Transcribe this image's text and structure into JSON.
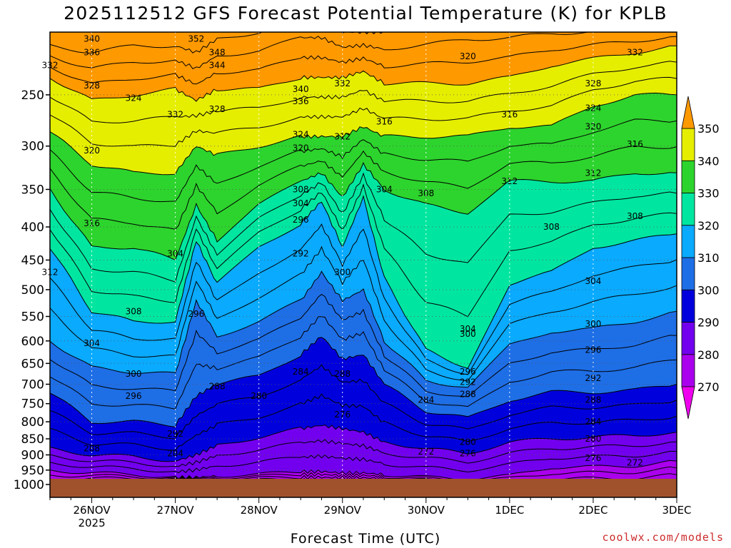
{
  "chart_data": {
    "type": "heatmap",
    "title": "2025112512 GFS Forecast Potential Temperature (K) for KPLB",
    "xlabel": "Forecast Time (UTC)",
    "ylabel": "",
    "credit": "coolwx.com/models",
    "y_axis": {
      "scale": "log-pressure",
      "range": [
        1000,
        200
      ],
      "ticks": [
        250,
        300,
        350,
        400,
        450,
        500,
        550,
        600,
        650,
        700,
        750,
        800,
        850,
        900,
        950,
        1000
      ]
    },
    "x_axis": {
      "range": [
        "2025-11-25 12Z",
        "2025-12-03 00Z"
      ],
      "ticks": [
        {
          "label": "26NOV",
          "sublabel": "2025",
          "time": "2025-11-26 00Z"
        },
        {
          "label": "27NOV",
          "sublabel": "",
          "time": "2025-11-27 00Z"
        },
        {
          "label": "28NOV",
          "sublabel": "",
          "time": "2025-11-28 00Z"
        },
        {
          "label": "29NOV",
          "sublabel": "",
          "time": "2025-11-29 00Z"
        },
        {
          "label": "30NOV",
          "sublabel": "",
          "time": "2025-11-30 00Z"
        },
        {
          "label": "1DEC",
          "sublabel": "",
          "time": "2025-12-01 00Z"
        },
        {
          "label": "2DEC",
          "sublabel": "",
          "time": "2025-12-02 00Z"
        },
        {
          "label": "3DEC",
          "sublabel": "",
          "time": "2025-12-03 00Z"
        }
      ]
    },
    "grid": true,
    "colorbar": {
      "levels": [
        270,
        280,
        290,
        300,
        310,
        320,
        330,
        340,
        350
      ],
      "colors": [
        "#ee00ee",
        "#aa00ee",
        "#7200ee",
        "#0000dd",
        "#1e6ee6",
        "#0aaaff",
        "#00e6a0",
        "#2dd42d",
        "#e6ee00",
        "#ff9900"
      ]
    },
    "ground_color": "#a0522d",
    "profile_times": [
      "11-25 12Z",
      "11-26 00Z",
      "11-26 12Z",
      "11-27 00Z",
      "11-27 06Z",
      "11-27 12Z",
      "11-28 00Z",
      "11-28 12Z",
      "11-28 18Z",
      "11-29 00Z",
      "11-29 06Z",
      "11-29 12Z",
      "11-30 00Z",
      "11-30 12Z",
      "12-01 00Z",
      "12-01 12Z",
      "12-02 00Z",
      "12-02 12Z",
      "12-03 00Z"
    ],
    "isentrope_pressures": [
      [
        1000,
        990,
        985,
        985,
        985,
        985,
        985,
        985,
        985,
        985,
        985,
        985,
        990,
        1000,
        1000,
        1000,
        1000,
        1000,
        990
      ],
      [
        950,
        960,
        965,
        975,
        975,
        970,
        965,
        955,
        955,
        960,
        960,
        965,
        975,
        980,
        970,
        940,
        940,
        935,
        920
      ],
      [
        880,
        900,
        905,
        920,
        900,
        870,
        845,
        820,
        810,
        820,
        830,
        860,
        880,
        895,
        860,
        850,
        845,
        840,
        830
      ],
      [
        720,
        800,
        800,
        810,
        730,
        700,
        680,
        630,
        590,
        640,
        630,
        700,
        770,
        790,
        740,
        720,
        720,
        715,
        700
      ],
      [
        600,
        660,
        670,
        675,
        520,
        590,
        560,
        520,
        470,
        520,
        500,
        600,
        690,
        710,
        610,
        580,
        575,
        560,
        540
      ],
      [
        430,
        540,
        560,
        560,
        420,
        490,
        430,
        395,
        365,
        430,
        360,
        480,
        620,
        660,
        490,
        470,
        430,
        420,
        410
      ],
      [
        350,
        430,
        430,
        450,
        370,
        420,
        370,
        340,
        330,
        360,
        320,
        350,
        370,
        380,
        340,
        340,
        340,
        330,
        330
      ],
      [
        285,
        320,
        330,
        330,
        300,
        310,
        300,
        290,
        290,
        290,
        280,
        290,
        290,
        290,
        280,
        280,
        260,
        250,
        250
      ],
      [
        235,
        255,
        250,
        245,
        255,
        245,
        245,
        235,
        235,
        235,
        230,
        240,
        240,
        240,
        235,
        225,
        220,
        215,
        210
      ],
      [
        210,
        215,
        210,
        210,
        215,
        205,
        200,
        190,
        190,
        200,
        200,
        200,
        195,
        190,
        190,
        190,
        190,
        190,
        190
      ]
    ],
    "contour_labels": [
      {
        "text": "352",
        "time": "11-27 06Z",
        "p": 205
      },
      {
        "text": "348",
        "time": "11-27 12Z",
        "p": 215
      },
      {
        "text": "344",
        "time": "11-27 12Z",
        "p": 225
      },
      {
        "text": "340",
        "time": "11-26 00Z",
        "p": 205
      },
      {
        "text": "336",
        "time": "11-26 00Z",
        "p": 215
      },
      {
        "text": "332",
        "time": "11-25 12Z",
        "p": 225
      },
      {
        "text": "328",
        "time": "11-26 00Z",
        "p": 242
      },
      {
        "text": "324",
        "time": "11-26 12Z",
        "p": 253
      },
      {
        "text": "332",
        "time": "11-27 00Z",
        "p": 268
      },
      {
        "text": "328",
        "time": "11-27 12Z",
        "p": 263
      },
      {
        "text": "340",
        "time": "11-28 12Z",
        "p": 245
      },
      {
        "text": "336",
        "time": "11-28 12Z",
        "p": 256
      },
      {
        "text": "332",
        "time": "11-29 00Z",
        "p": 240
      },
      {
        "text": "324",
        "time": "11-28 12Z",
        "p": 288
      },
      {
        "text": "320",
        "time": "11-28 12Z",
        "p": 302
      },
      {
        "text": "312",
        "time": "11-29 00Z",
        "p": 290
      },
      {
        "text": "316",
        "time": "11-29 12Z",
        "p": 275
      },
      {
        "text": "320",
        "time": "11-30 12Z",
        "p": 218
      },
      {
        "text": "316",
        "time": "12-01 00Z",
        "p": 268
      },
      {
        "text": "312",
        "time": "12-01 00Z",
        "p": 340
      },
      {
        "text": "308",
        "time": "12-01 12Z",
        "p": 400
      },
      {
        "text": "304",
        "time": "12-02 00Z",
        "p": 485
      },
      {
        "text": "300",
        "time": "12-02 00Z",
        "p": 565
      },
      {
        "text": "296",
        "time": "12-02 00Z",
        "p": 620
      },
      {
        "text": "292",
        "time": "12-02 00Z",
        "p": 685
      },
      {
        "text": "288",
        "time": "12-02 00Z",
        "p": 740
      },
      {
        "text": "284",
        "time": "12-02 00Z",
        "p": 800
      },
      {
        "text": "280",
        "time": "12-02 00Z",
        "p": 850
      },
      {
        "text": "276",
        "time": "12-02 00Z",
        "p": 910
      },
      {
        "text": "272",
        "time": "12-02 12Z",
        "p": 925
      },
      {
        "text": "332",
        "time": "12-02 12Z",
        "p": 215
      },
      {
        "text": "328",
        "time": "12-02 00Z",
        "p": 240
      },
      {
        "text": "324",
        "time": "12-02 00Z",
        "p": 262
      },
      {
        "text": "320",
        "time": "12-02 00Z",
        "p": 280
      },
      {
        "text": "316",
        "time": "12-02 12Z",
        "p": 298
      },
      {
        "text": "312",
        "time": "12-02 00Z",
        "p": 330
      },
      {
        "text": "308",
        "time": "12-02 12Z",
        "p": 385
      },
      {
        "text": "320",
        "time": "11-26 00Z",
        "p": 305
      },
      {
        "text": "316",
        "time": "11-26 00Z",
        "p": 395
      },
      {
        "text": "312",
        "time": "11-25 12Z",
        "p": 470
      },
      {
        "text": "308",
        "time": "11-26 12Z",
        "p": 540
      },
      {
        "text": "304",
        "time": "11-26 00Z",
        "p": 605
      },
      {
        "text": "300",
        "time": "11-26 12Z",
        "p": 675
      },
      {
        "text": "296",
        "time": "11-26 12Z",
        "p": 730
      },
      {
        "text": "292",
        "time": "11-27 00Z",
        "p": 835
      },
      {
        "text": "288",
        "time": "11-26 00Z",
        "p": 880
      },
      {
        "text": "284",
        "time": "11-27 00Z",
        "p": 895
      },
      {
        "text": "304",
        "time": "11-27 00Z",
        "p": 440
      },
      {
        "text": "296",
        "time": "11-27 06Z",
        "p": 545
      },
      {
        "text": "288",
        "time": "11-27 12Z",
        "p": 705
      },
      {
        "text": "280",
        "time": "11-28 00Z",
        "p": 730
      },
      {
        "text": "308",
        "time": "11-28 12Z",
        "p": 350
      },
      {
        "text": "304",
        "time": "11-28 12Z",
        "p": 368
      },
      {
        "text": "296",
        "time": "11-28 12Z",
        "p": 390
      },
      {
        "text": "292",
        "time": "11-28 12Z",
        "p": 440
      },
      {
        "text": "300",
        "time": "11-29 00Z",
        "p": 470
      },
      {
        "text": "284",
        "time": "11-28 12Z",
        "p": 670
      },
      {
        "text": "288",
        "time": "11-29 00Z",
        "p": 675
      },
      {
        "text": "276",
        "time": "11-29 00Z",
        "p": 780
      },
      {
        "text": "272",
        "time": "11-30 00Z",
        "p": 890
      },
      {
        "text": "304",
        "time": "11-29 12Z",
        "p": 350
      },
      {
        "text": "308",
        "time": "11-30 00Z",
        "p": 355
      },
      {
        "text": "300",
        "time": "11-30 12Z",
        "p": 585
      },
      {
        "text": "304",
        "time": "11-30 12Z",
        "p": 575
      },
      {
        "text": "296",
        "time": "11-30 12Z",
        "p": 670
      },
      {
        "text": "292",
        "time": "11-30 12Z",
        "p": 695
      },
      {
        "text": "288",
        "time": "11-30 12Z",
        "p": 725
      },
      {
        "text": "284",
        "time": "11-30 00Z",
        "p": 740
      },
      {
        "text": "280",
        "time": "11-30 12Z",
        "p": 860
      },
      {
        "text": "276",
        "time": "11-30 12Z",
        "p": 895
      }
    ]
  }
}
